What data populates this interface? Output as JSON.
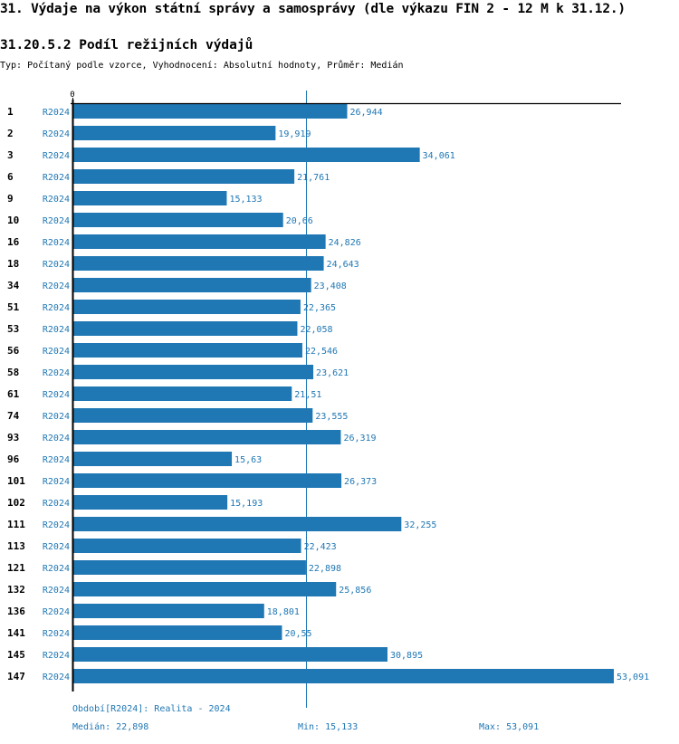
{
  "header": {
    "title": "31. Výdaje na výkon státní správy a samosprávy (dle výkazu FIN 2 - 12 M k 31.12.)",
    "subtitle": "31.20.5.2 Podíl režijních výdajů",
    "type_line": "Typ: Počítaný podle vzorce, Vyhodnocení: Absolutní hodnoty, Průměr: Medián"
  },
  "colors": {
    "bar": "#1f77b4",
    "label": "#1f77b4",
    "axis": "#000000",
    "median_line": "#1f77b4"
  },
  "chart_data": {
    "type": "bar",
    "orientation": "horizontal",
    "title": "31.20.5.2 Podíl režijních výdajů",
    "xlabel": "",
    "ylabel": "",
    "x_tick_labels": [
      "0"
    ],
    "xlim": [
      0,
      53.091
    ],
    "median_reference": 22.898,
    "series_label": "R2024",
    "categories": [
      "1",
      "2",
      "3",
      "6",
      "9",
      "10",
      "16",
      "18",
      "34",
      "51",
      "53",
      "56",
      "58",
      "61",
      "74",
      "93",
      "96",
      "101",
      "102",
      "111",
      "113",
      "121",
      "132",
      "136",
      "141",
      "145",
      "147"
    ],
    "values": [
      26.944,
      19.919,
      34.061,
      21.761,
      15.133,
      20.66,
      24.826,
      24.643,
      23.408,
      22.365,
      22.058,
      22.546,
      23.621,
      21.51,
      23.555,
      26.319,
      15.63,
      26.373,
      15.193,
      32.255,
      22.423,
      22.898,
      25.856,
      18.801,
      20.55,
      30.895,
      53.091
    ],
    "value_labels": [
      "26,944",
      "19,919",
      "34,061",
      "21,761",
      "15,133",
      "20,66",
      "24,826",
      "24,643",
      "23,408",
      "22,365",
      "22,058",
      "22,546",
      "23,621",
      "21,51",
      "23,555",
      "26,319",
      "15,63",
      "26,373",
      "15,193",
      "32,255",
      "22,423",
      "22,898",
      "25,856",
      "18,801",
      "20,55",
      "30,895",
      "53,091"
    ],
    "grid": false,
    "legend": "none"
  },
  "footer": {
    "period": "Období[R2024]: Realita - 2024",
    "median": "Medián: 22,898",
    "min": "Min: 15,133",
    "max": "Max: 53,091"
  }
}
